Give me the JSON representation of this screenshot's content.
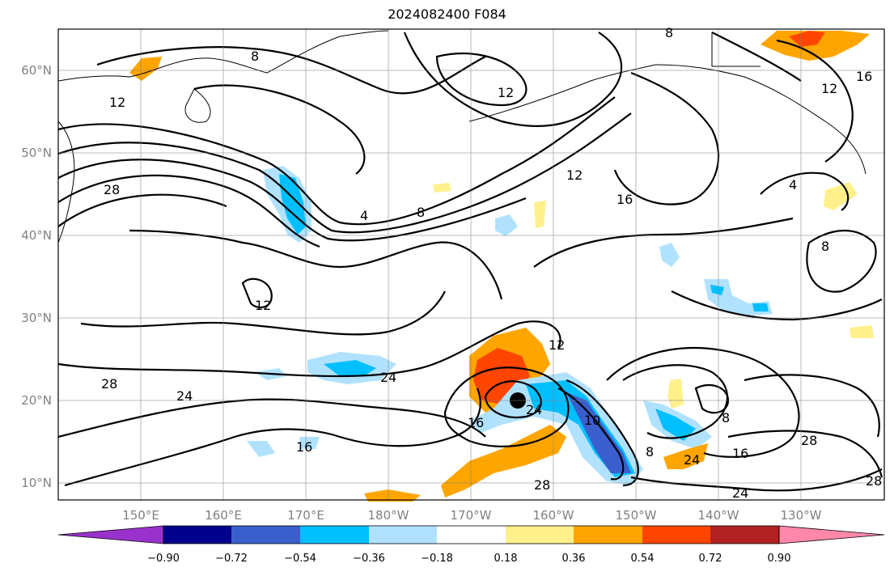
{
  "title": "2024082400 F084",
  "lat_labels": [
    "60°N",
    "50°N",
    "40°N",
    "30°N",
    "20°N",
    "10°N"
  ],
  "lon_labels": [
    "150°E",
    "160°E",
    "170°E",
    "180°W",
    "170°W",
    "160°W",
    "150°W",
    "140°W",
    "130°W"
  ],
  "contour_labels": [
    "8",
    "12",
    "12",
    "8",
    "12",
    "16",
    "28",
    "4",
    "8",
    "12",
    "16",
    "4",
    "8",
    "12",
    "28",
    "24",
    "12",
    "16",
    "24",
    "16",
    "8",
    "10",
    "8",
    "24",
    "28",
    "16",
    "28",
    "24",
    "28",
    "24"
  ],
  "colorbar": {
    "ticks": [
      "−0.90",
      "−0.72",
      "−0.54",
      "−0.36",
      "−0.18",
      "0.18",
      "0.36",
      "0.54",
      "0.72",
      "0.90"
    ],
    "colors": [
      "#9932cc",
      "#00008b",
      "#3a5fcd",
      "#00bfff",
      "#b0e2ff",
      "#ffffff",
      "#fff08c",
      "#ffa500",
      "#ff4500",
      "#b22222",
      "#ff88aa"
    ]
  },
  "marker": "storm-center"
}
